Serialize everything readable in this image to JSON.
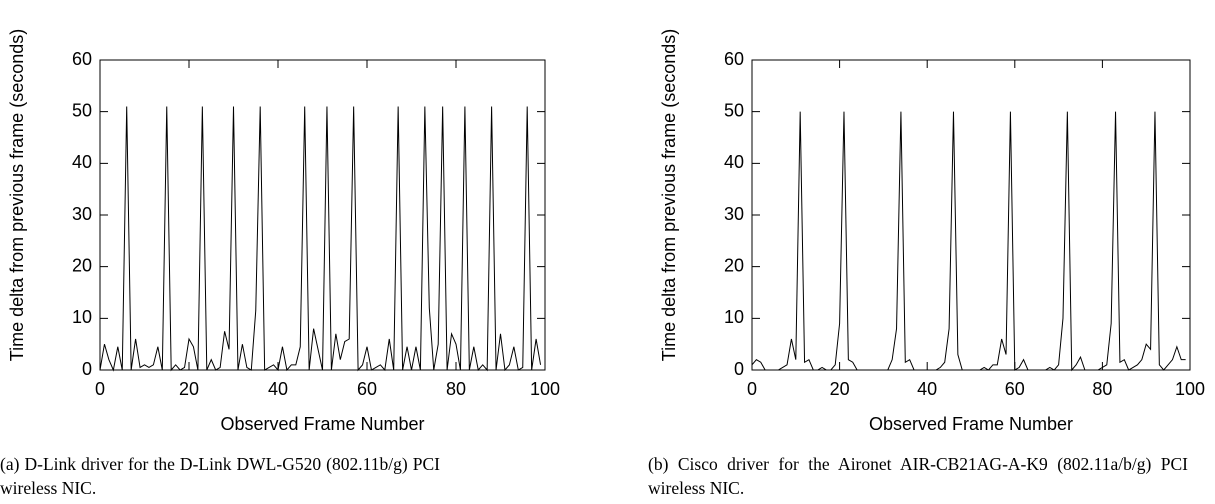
{
  "chart_data": [
    {
      "type": "line",
      "xlabel": "Observed Frame Number",
      "ylabel": "Time delta from previous frame (seconds)",
      "caption": "(a) D-Link driver for the D-Link DWL-G520 (802.11b/g) PCI wireless NIC.",
      "xlim": [
        0,
        100
      ],
      "ylim": [
        0,
        60
      ],
      "xticks": [
        0,
        20,
        40,
        60,
        80,
        100
      ],
      "yticks": [
        0,
        10,
        20,
        30,
        40,
        50,
        60
      ],
      "color": "#000000",
      "x": [
        0,
        1,
        2,
        3,
        4,
        5,
        6,
        7,
        8,
        9,
        10,
        11,
        12,
        13,
        14,
        15,
        16,
        17,
        18,
        19,
        20,
        21,
        22,
        23,
        24,
        25,
        26,
        27,
        28,
        29,
        30,
        31,
        32,
        33,
        34,
        35,
        36,
        37,
        38,
        39,
        40,
        41,
        42,
        43,
        44,
        45,
        46,
        47,
        48,
        49,
        50,
        51,
        52,
        53,
        54,
        55,
        56,
        57,
        58,
        59,
        60,
        61,
        62,
        63,
        64,
        65,
        66,
        67,
        68,
        69,
        70,
        71,
        72,
        73,
        74,
        75,
        76,
        77,
        78,
        79,
        80,
        81,
        82,
        83,
        84,
        85,
        86,
        87,
        88,
        89,
        90,
        91,
        92,
        93,
        94,
        95,
        96,
        97,
        98,
        99
      ],
      "values": [
        0,
        5,
        2,
        0,
        4.5,
        0,
        51,
        0,
        6,
        0.5,
        1,
        0.5,
        1,
        4.5,
        0,
        51,
        0,
        1,
        0,
        0.5,
        6,
        4.5,
        0,
        51,
        0,
        2,
        0,
        0.5,
        7.5,
        4,
        51,
        0,
        5,
        0.5,
        0,
        11.5,
        51,
        0,
        0.5,
        1,
        0,
        4.5,
        0,
        1,
        1,
        4.5,
        51,
        0,
        8,
        4,
        0,
        51,
        0,
        7,
        2,
        5.5,
        6,
        51,
        0,
        1,
        4.5,
        0,
        0.5,
        1,
        0,
        6,
        0,
        51,
        0,
        4.5,
        0,
        4.5,
        0,
        51,
        12,
        0,
        5,
        51,
        0,
        7,
        5,
        0,
        51,
        0,
        4.5,
        0,
        1,
        0,
        51,
        0,
        7,
        0,
        1,
        4.5,
        0,
        0.5,
        51,
        0,
        6,
        1
      ]
    },
    {
      "type": "line",
      "xlabel": "Observed Frame Number",
      "ylabel": "Time delta from previous frame (seconds)",
      "caption": "(b) Cisco driver for the Aironet AIR-CB21AG-A-K9 (802.11a/b/g) PCI wireless NIC.",
      "xlim": [
        0,
        100
      ],
      "ylim": [
        0,
        60
      ],
      "xticks": [
        0,
        20,
        40,
        60,
        80,
        100
      ],
      "yticks": [
        0,
        10,
        20,
        30,
        40,
        50,
        60
      ],
      "color": "#000000",
      "x": [
        0,
        1,
        2,
        3,
        4,
        5,
        6,
        7,
        8,
        9,
        10,
        11,
        12,
        13,
        14,
        15,
        16,
        17,
        18,
        19,
        20,
        21,
        22,
        23,
        24,
        25,
        26,
        27,
        28,
        29,
        30,
        31,
        32,
        33,
        34,
        35,
        36,
        37,
        38,
        39,
        40,
        41,
        42,
        43,
        44,
        45,
        46,
        47,
        48,
        49,
        50,
        51,
        52,
        53,
        54,
        55,
        56,
        57,
        58,
        59,
        60,
        61,
        62,
        63,
        64,
        65,
        66,
        67,
        68,
        69,
        70,
        71,
        72,
        73,
        74,
        75,
        76,
        77,
        78,
        79,
        80,
        81,
        82,
        83,
        84,
        85,
        86,
        87,
        88,
        89,
        90,
        91,
        92,
        93,
        94,
        95,
        96,
        97,
        98,
        99
      ],
      "values": [
        1,
        2,
        1.5,
        0,
        0,
        0,
        0,
        0.5,
        1,
        6,
        2,
        50,
        1.5,
        2,
        0,
        0,
        0.5,
        0,
        0,
        1,
        9,
        50,
        2,
        1.5,
        0,
        0,
        0,
        0,
        0,
        0,
        0,
        0,
        2,
        8,
        50,
        1.5,
        2,
        0,
        0,
        0,
        0,
        0,
        0,
        0.5,
        1.5,
        8,
        50,
        3,
        0,
        0,
        0,
        0,
        0,
        0.5,
        0,
        1,
        1,
        6,
        3,
        50,
        0,
        0.5,
        2,
        0,
        0,
        0,
        0,
        0,
        0.5,
        0,
        1,
        10,
        50,
        0,
        1,
        2.5,
        0,
        0,
        0,
        0,
        0.5,
        1,
        9,
        50,
        1.5,
        2,
        0,
        0.5,
        1,
        2,
        5,
        4,
        50,
        1,
        0,
        1,
        2,
        4.5,
        2,
        2
      ]
    }
  ]
}
